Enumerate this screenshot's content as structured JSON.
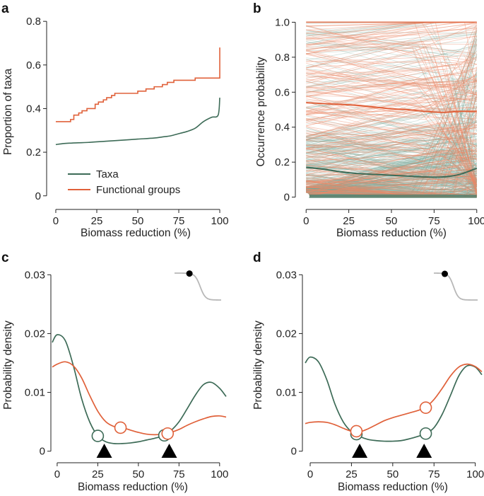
{
  "colors": {
    "taxa": "#3d6b57",
    "functional": "#e0613a",
    "axis": "#222222",
    "inset_curve": "#b8b8b8"
  },
  "chart_data": [
    {
      "id": "a",
      "panel_label": "a",
      "type": "line",
      "xlabel": "Biomass reduction (%)",
      "ylabel": "Proportion of taxa",
      "xlim": [
        -3,
        103
      ],
      "ylim": [
        -0.03,
        0.82
      ],
      "xticks": [
        0,
        25,
        50,
        75,
        100
      ],
      "xtick_labels": [
        "0",
        "25",
        "50",
        "75",
        "100"
      ],
      "yticks": [
        0,
        0.2,
        0.4,
        0.6,
        0.8
      ],
      "ytick_labels": [
        "0",
        "0.2",
        "0.4",
        "0.6",
        "0.8"
      ],
      "legend": [
        {
          "label": "Taxa",
          "color": "#3d6b57"
        },
        {
          "label": "Functional groups",
          "color": "#e0613a"
        }
      ],
      "series": [
        {
          "name": "Functional groups",
          "color": "#e0613a",
          "step": true,
          "x": [
            0,
            4,
            9,
            11,
            14,
            16,
            19,
            24,
            26,
            29,
            31,
            34,
            36,
            38,
            42,
            46,
            50,
            55,
            60,
            65,
            68,
            72,
            80,
            85,
            99,
            100
          ],
          "y": [
            0.34,
            0.34,
            0.35,
            0.37,
            0.38,
            0.39,
            0.4,
            0.42,
            0.43,
            0.44,
            0.45,
            0.46,
            0.47,
            0.47,
            0.47,
            0.47,
            0.48,
            0.49,
            0.5,
            0.51,
            0.52,
            0.53,
            0.53,
            0.54,
            0.54,
            0.68
          ]
        },
        {
          "name": "Taxa",
          "color": "#3d6b57",
          "step": false,
          "x": [
            0,
            5,
            10,
            20,
            30,
            40,
            50,
            60,
            65,
            70,
            75,
            80,
            85,
            90,
            95,
            99,
            100
          ],
          "y": [
            0.235,
            0.24,
            0.242,
            0.245,
            0.25,
            0.255,
            0.26,
            0.265,
            0.27,
            0.275,
            0.285,
            0.295,
            0.31,
            0.34,
            0.36,
            0.37,
            0.45
          ]
        }
      ]
    },
    {
      "id": "b",
      "panel_label": "b",
      "type": "line",
      "xlabel": "Biomass reduction (%)",
      "ylabel": "Occurrence probability",
      "xlim": [
        -3,
        103
      ],
      "ylim": [
        -0.03,
        1.03
      ],
      "xticks": [
        0,
        25,
        50,
        75,
        100
      ],
      "xtick_labels": [
        "0",
        "25",
        "50",
        "75",
        "100"
      ],
      "yticks": [
        0,
        0.2,
        0.4,
        0.6,
        0.8,
        1.0
      ],
      "ytick_labels": [
        "0",
        "0.2",
        "0.4",
        "0.6",
        "0.8",
        "1.0"
      ],
      "background_lines": {
        "description": "many individual taxon and functional-group occurrence curves",
        "taxa_count": 400,
        "functional_count": 220
      },
      "series": [
        {
          "name": "Functional groups mean",
          "color": "#e0613a",
          "x": [
            0,
            10,
            20,
            30,
            40,
            50,
            60,
            70,
            80,
            90,
            100
          ],
          "y": [
            0.54,
            0.535,
            0.53,
            0.525,
            0.515,
            0.505,
            0.5,
            0.49,
            0.485,
            0.49,
            0.49
          ]
        },
        {
          "name": "Taxa mean",
          "color": "#3d6b57",
          "x": [
            0,
            10,
            20,
            30,
            40,
            50,
            60,
            70,
            80,
            90,
            100
          ],
          "y": [
            0.17,
            0.16,
            0.145,
            0.135,
            0.13,
            0.125,
            0.12,
            0.115,
            0.115,
            0.13,
            0.165
          ]
        }
      ]
    },
    {
      "id": "c",
      "panel_label": "c",
      "type": "line",
      "xlabel": "Biomass reduction (%)",
      "ylabel": "Probability density",
      "xlim": [
        -3,
        104
      ],
      "ylim": [
        -0.001,
        0.031
      ],
      "xticks": [
        0,
        25,
        50,
        75,
        100
      ],
      "xtick_labels": [
        "0",
        "25",
        "50",
        "75",
        "100"
      ],
      "yticks": [
        0,
        0.01,
        0.02,
        0.03
      ],
      "ytick_labels": [
        "0",
        "0.01",
        "0.02",
        "0.03"
      ],
      "series": [
        {
          "name": "Taxa",
          "color": "#3d6b57",
          "x": [
            -3,
            0,
            5,
            10,
            15,
            20,
            25,
            30,
            35,
            40,
            45,
            50,
            55,
            60,
            65,
            70,
            75,
            80,
            85,
            90,
            95,
            100,
            104
          ],
          "y": [
            0.0185,
            0.0198,
            0.0188,
            0.0145,
            0.009,
            0.005,
            0.0026,
            0.0016,
            0.0013,
            0.0013,
            0.0014,
            0.0016,
            0.0019,
            0.0022,
            0.0026,
            0.0035,
            0.005,
            0.0072,
            0.0095,
            0.0113,
            0.0117,
            0.0107,
            0.0093
          ]
        },
        {
          "name": "Functional groups",
          "color": "#e0613a",
          "x": [
            -3,
            0,
            5,
            10,
            15,
            20,
            25,
            30,
            35,
            40,
            45,
            50,
            55,
            60,
            65,
            70,
            75,
            80,
            85,
            90,
            95,
            100,
            104
          ],
          "y": [
            0.0143,
            0.0148,
            0.0152,
            0.0145,
            0.0125,
            0.0095,
            0.0068,
            0.005,
            0.0042,
            0.004,
            0.0036,
            0.0032,
            0.0029,
            0.0028,
            0.0029,
            0.0032,
            0.0037,
            0.0044,
            0.005,
            0.0055,
            0.0059,
            0.006,
            0.0058
          ]
        }
      ],
      "markers": [
        {
          "series": "Taxa",
          "x": 25,
          "y": 0.0026,
          "color": "#3d6b57"
        },
        {
          "series": "Taxa",
          "x": 66,
          "y": 0.0027,
          "color": "#3d6b57"
        },
        {
          "series": "Functional groups",
          "x": 39,
          "y": 0.004,
          "color": "#e0613a"
        },
        {
          "series": "Functional groups",
          "x": 68,
          "y": 0.003,
          "color": "#e0613a"
        }
      ],
      "triangles": [
        29,
        69
      ],
      "inset": {
        "threshold_x": 0.55,
        "point_x": 0.32
      }
    },
    {
      "id": "d",
      "panel_label": "d",
      "type": "line",
      "xlabel": "Biomass reduction (%)",
      "ylabel": "Probability density",
      "xlim": [
        -3,
        104
      ],
      "ylim": [
        -0.001,
        0.031
      ],
      "xticks": [
        0,
        25,
        50,
        75,
        100
      ],
      "xtick_labels": [
        "0",
        "25",
        "50",
        "75",
        "100"
      ],
      "yticks": [
        0,
        0.01,
        0.02,
        0.03
      ],
      "ytick_labels": [
        "0",
        "0.01",
        "0.02",
        "0.03"
      ],
      "series": [
        {
          "name": "Taxa",
          "color": "#3d6b57",
          "x": [
            -3,
            0,
            5,
            10,
            15,
            20,
            25,
            30,
            35,
            40,
            45,
            50,
            55,
            60,
            65,
            70,
            75,
            80,
            85,
            90,
            95,
            100,
            104
          ],
          "y": [
            0.015,
            0.016,
            0.0152,
            0.0122,
            0.008,
            0.005,
            0.0033,
            0.0025,
            0.002,
            0.0018,
            0.0017,
            0.0017,
            0.0018,
            0.0021,
            0.0025,
            0.003,
            0.004,
            0.0063,
            0.0095,
            0.0128,
            0.0145,
            0.0143,
            0.013
          ]
        },
        {
          "name": "Functional groups",
          "color": "#e0613a",
          "x": [
            -3,
            0,
            5,
            10,
            15,
            20,
            25,
            30,
            35,
            40,
            45,
            50,
            55,
            60,
            65,
            70,
            75,
            80,
            85,
            90,
            95,
            100,
            104
          ],
          "y": [
            0.0047,
            0.0049,
            0.005,
            0.0049,
            0.0045,
            0.0039,
            0.0034,
            0.0033,
            0.0038,
            0.0045,
            0.0052,
            0.0057,
            0.0061,
            0.0065,
            0.0069,
            0.0075,
            0.0088,
            0.0107,
            0.0128,
            0.0143,
            0.0148,
            0.0144,
            0.0135
          ]
        }
      ],
      "markers": [
        {
          "series": "Taxa",
          "x": 28,
          "y": 0.0029,
          "color": "#3d6b57"
        },
        {
          "series": "Taxa",
          "x": 70,
          "y": 0.003,
          "color": "#3d6b57"
        },
        {
          "series": "Functional groups",
          "x": 28,
          "y": 0.0034,
          "color": "#e0613a"
        },
        {
          "series": "Functional groups",
          "x": 70,
          "y": 0.0074,
          "color": "#e0613a"
        }
      ],
      "triangles": [
        30,
        69
      ],
      "inset": {
        "threshold_x": 0.45,
        "point_x": 0.25
      }
    }
  ]
}
